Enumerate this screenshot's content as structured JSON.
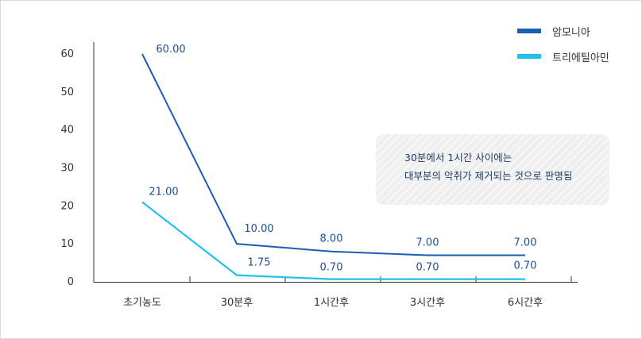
{
  "chart_data": {
    "type": "line",
    "categories": [
      "초기농도",
      "30분후",
      "1시간후",
      "3시간후",
      "6시간후"
    ],
    "series": [
      {
        "name": "암모니아",
        "values": [
          60.0,
          10.0,
          8.0,
          7.0,
          7.0
        ],
        "labels": [
          "60.00",
          "10.00",
          "8.00",
          "7.00",
          "7.00"
        ],
        "color": "#1a5fb4"
      },
      {
        "name": "트리에틸아민",
        "values": [
          21.0,
          1.75,
          0.7,
          0.7,
          0.7
        ],
        "labels": [
          "21.00",
          "1.75",
          "0.70",
          "0.70",
          "0.70"
        ],
        "color": "#1fc1ec"
      }
    ],
    "yticks": [
      0,
      10,
      20,
      30,
      40,
      50,
      60
    ],
    "ylim": [
      0,
      60
    ],
    "title": "",
    "xlabel": "",
    "ylabel": "",
    "grid": false,
    "legend_position": "top-right",
    "annotation": [
      "30분에서 1시간 사이에는",
      "대부분의 악취가 제거되는 것으로 판명됨"
    ]
  },
  "colors": {
    "axis": "#333333",
    "label_text": "#1f4f8f",
    "annotation_text": "#1f3a5f"
  }
}
